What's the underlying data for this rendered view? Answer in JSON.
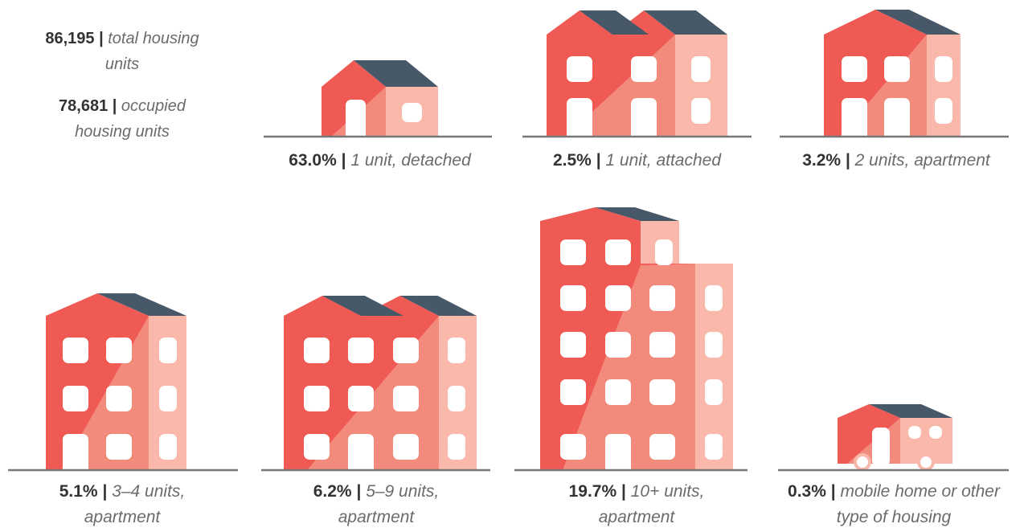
{
  "separator": "|",
  "summary": [
    {
      "value": "86,195",
      "label": "total housing units"
    },
    {
      "value": "78,681",
      "label": "occupied housing units"
    }
  ],
  "housing_types": [
    {
      "share": "63.0%",
      "label": "1 unit, detached"
    },
    {
      "share": "2.5%",
      "label": "1 unit, attached"
    },
    {
      "share": "3.2%",
      "label": "2 units, apartment"
    },
    {
      "share": "5.1%",
      "label": "3–4 units, apartment"
    },
    {
      "share": "6.2%",
      "label": "5–9 units, apartment"
    },
    {
      "share": "19.7%",
      "label": "10+ units, apartment"
    },
    {
      "share": "0.3%",
      "label": "mobile home or other type of housing"
    }
  ]
}
